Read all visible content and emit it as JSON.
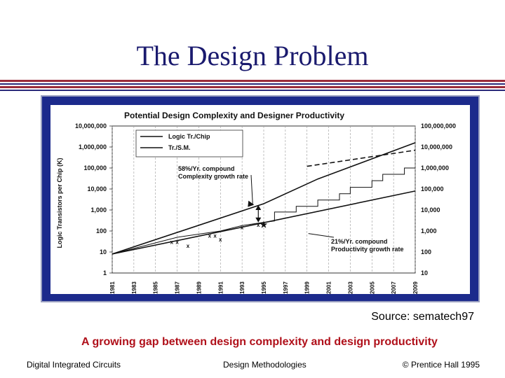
{
  "slide": {
    "title": "The Design Problem",
    "source": "Source: sematech97",
    "caption": "A growing gap between design complexity and design productivity",
    "footer_left": "Digital Integrated Circuits",
    "footer_center": "Design Methodologies",
    "footer_right": "© Prentice Hall 1995"
  },
  "colors": {
    "title": "#1a1a6e",
    "caption": "#b0101a",
    "frame": "#1c2a8c",
    "rule_red": "#9a2b3a",
    "rule_blue": "#2a2a7a"
  },
  "chart_data": {
    "type": "line",
    "title": "Potential Design Complexity and Designer Productivity",
    "ylabel": "Logic Transistors per Chip (K)",
    "ylabel_right": "",
    "y_scale": "log",
    "ylim": [
      1,
      10000000
    ],
    "y_ticks": [
      "1",
      "10",
      "100",
      "1,000",
      "10,000",
      "100,000",
      "1,000,000",
      "10,000,000"
    ],
    "y2_ticks": [
      "10",
      "100",
      "1,000",
      "10,000",
      "100,000",
      "1,000,000",
      "10,000,000",
      "100,000,000"
    ],
    "x_ticks": [
      "1981",
      "1983",
      "1985",
      "1987",
      "1989",
      "1991",
      "1993",
      "1995",
      "1997",
      "1999",
      "2001",
      "2003",
      "2005",
      "2007",
      "2009"
    ],
    "xlim": [
      1981,
      2009
    ],
    "legend": [
      "Logic Tr./Chip",
      "Tr./S.M."
    ],
    "legend_position": "top-left",
    "series": [
      {
        "name": "Logic Tr./Chip",
        "style": "solid",
        "points": [
          [
            1981,
            8
          ],
          [
            1995,
            2000
          ],
          [
            2000,
            30000
          ],
          [
            2009,
            1600000
          ]
        ]
      },
      {
        "name": "Logic Tr./Chip",
        "style": "dashed",
        "points": [
          [
            1999,
            120000
          ],
          [
            2009,
            700000
          ]
        ]
      },
      {
        "name": "Tr./S.M.",
        "style": "step",
        "points": [
          [
            1981,
            8
          ],
          [
            1987,
            50
          ],
          [
            1991,
            100
          ],
          [
            1993,
            180
          ],
          [
            1995,
            260
          ],
          [
            1996,
            300
          ],
          [
            1996,
            800
          ],
          [
            1998,
            800
          ],
          [
            1998,
            1500
          ],
          [
            2000,
            1500
          ],
          [
            2000,
            3000
          ],
          [
            2002,
            3000
          ],
          [
            2002,
            6000
          ],
          [
            2003,
            6000
          ],
          [
            2003,
            12000
          ],
          [
            2005,
            12000
          ],
          [
            2005,
            25000
          ],
          [
            2006,
            25000
          ],
          [
            2006,
            50000
          ],
          [
            2008,
            50000
          ],
          [
            2008,
            100000
          ],
          [
            2009,
            100000
          ]
        ]
      },
      {
        "name": "Tr./S.M.",
        "style": "solid",
        "points": [
          [
            1981,
            8
          ],
          [
            1995,
            250
          ],
          [
            2009,
            8000
          ]
        ]
      },
      {
        "name": "Tr./S.M.",
        "style": "marker-x",
        "points": [
          [
            1986.5,
            30
          ],
          [
            1987,
            30
          ],
          [
            1988,
            20
          ],
          [
            1990,
            60
          ],
          [
            1990.5,
            60
          ],
          [
            1991,
            40
          ],
          [
            1993,
            150
          ],
          [
            1994.5,
            200
          ]
        ]
      },
      {
        "name": "Tr./S.M.",
        "style": "marker-star",
        "points": [
          [
            1995,
            200
          ]
        ]
      }
    ],
    "annotations": [
      {
        "text": "58%/Yr. compound Complexity growth rate",
        "x": 1994.5,
        "y": 3000
      },
      {
        "text": "21%/Yr. compound Productivity growth rate",
        "x": 1999,
        "y": 120
      }
    ]
  }
}
